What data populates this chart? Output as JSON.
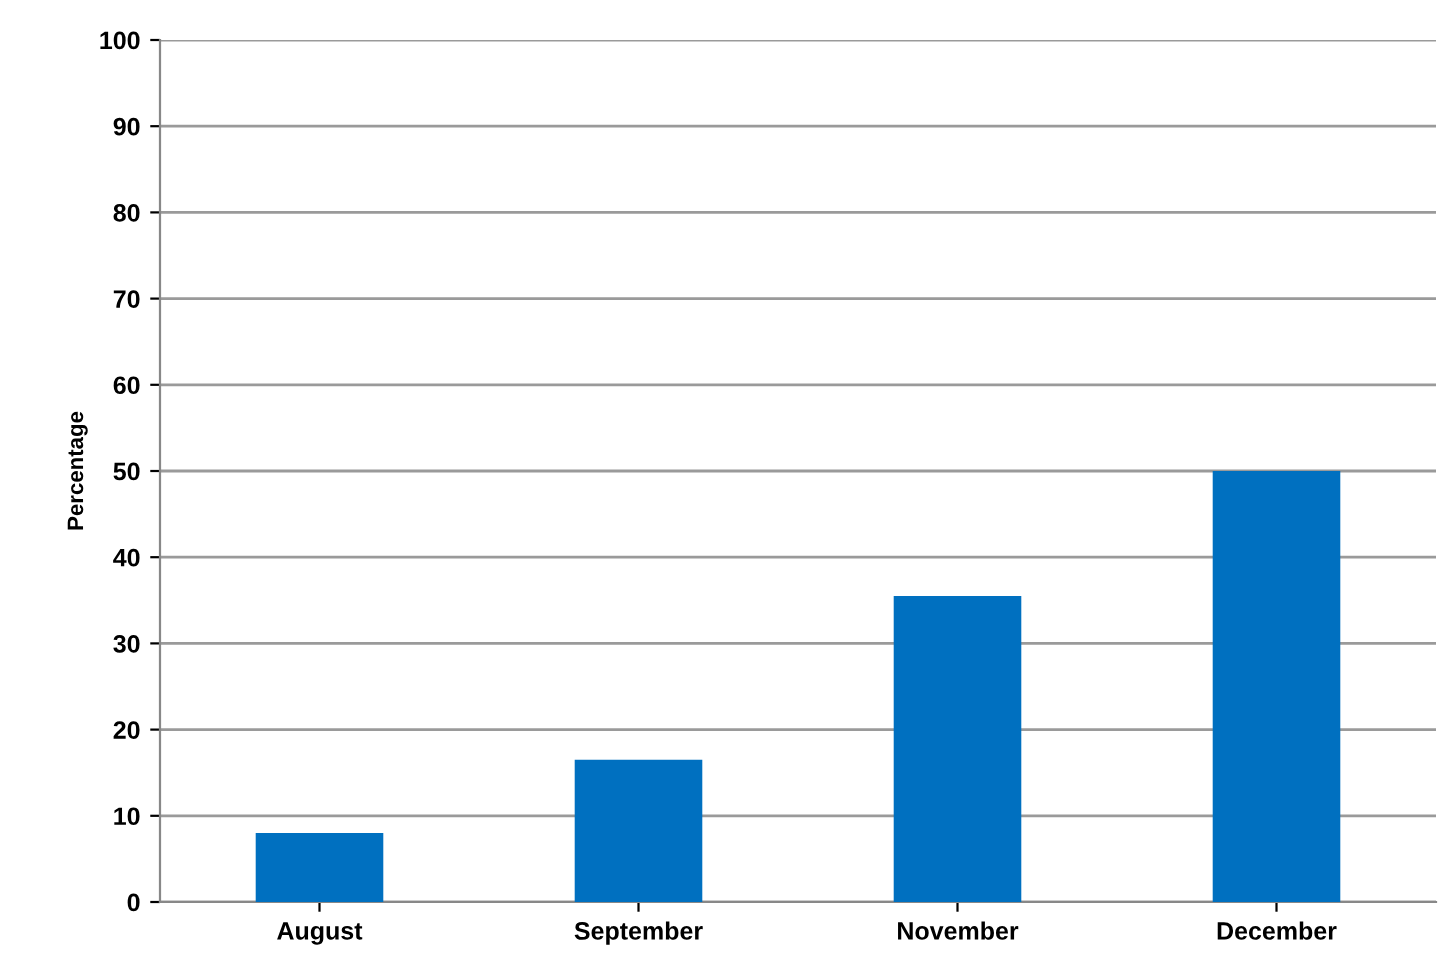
{
  "chart_data": {
    "type": "bar",
    "ylabel": "Percentage",
    "categories": [
      "August",
      "September",
      "November",
      "December"
    ],
    "values": [
      8,
      16.5,
      35.5,
      50
    ],
    "color": "#0070c0",
    "ylim": [
      0,
      100
    ],
    "yticks": [
      0,
      10,
      20,
      30,
      40,
      50,
      60,
      70,
      80,
      90,
      100
    ],
    "grid": "y"
  }
}
